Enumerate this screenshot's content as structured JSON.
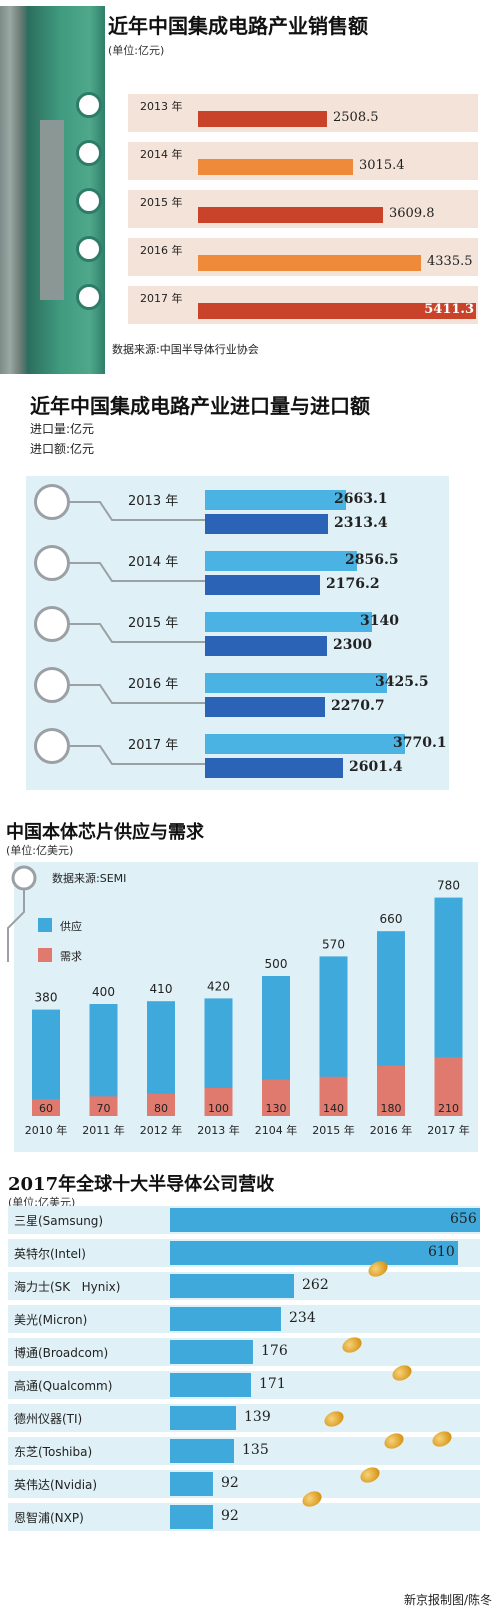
{
  "panel1": {
    "title": "近年中国集成电路产业销售额",
    "unit": "(单位:亿元)",
    "source": "数据来源:中国半导体行业协会",
    "colors": [
      "#c8432a",
      "#ee8a3a",
      "#c8432a",
      "#ee8a3a",
      "#c8432a"
    ]
  },
  "panel2": {
    "title": "近年中国集成电路产业进口量与进口额",
    "unit_volume": "进口量:亿元",
    "unit_amount": "进口额:亿元",
    "colors": {
      "volume": "#4ab3e3",
      "amount": "#2b63b6"
    }
  },
  "panel3": {
    "title": "中国本体芯片供应与需求",
    "unit": "(单位:亿美元)",
    "source": "数据来源:SEMI",
    "legend": [
      "供应",
      "需求"
    ],
    "colors": {
      "supply": "#3fa9dc",
      "demand": "#e07a6e"
    }
  },
  "panel4": {
    "title": "2017年全球十大半导体公司营收",
    "unit": "(单位:亿美元)",
    "credit": "新京报制图/陈冬"
  },
  "chart_data": [
    {
      "type": "bar",
      "title": "近年中国集成电路产业销售额",
      "categories": [
        "2013 年",
        "2014 年",
        "2015 年",
        "2016 年",
        "2017 年"
      ],
      "values": [
        2508.5,
        3015.4,
        3609.8,
        4335.5,
        5411.3
      ]
    },
    {
      "type": "bar",
      "title": "近年中国集成电路产业进口量与进口额",
      "categories": [
        "2013 年",
        "2014 年",
        "2015 年",
        "2016 年",
        "2017 年"
      ],
      "series": [
        {
          "name": "进口量",
          "values": [
            2663.1,
            2856.5,
            3140,
            3425.5,
            3770.1
          ]
        },
        {
          "name": "进口额",
          "values": [
            2313.4,
            2176.2,
            2300,
            2270.7,
            2601.4
          ]
        }
      ]
    },
    {
      "type": "bar",
      "title": "中国本体芯片供应与需求",
      "categories": [
        "2010 年",
        "2011 年",
        "2012 年",
        "2013 年",
        "2104 年",
        "2015 年",
        "2016 年",
        "2017 年"
      ],
      "series": [
        {
          "name": "供应",
          "values": [
            380,
            400,
            410,
            420,
            500,
            570,
            660,
            780
          ]
        },
        {
          "name": "需求",
          "values": [
            60,
            70,
            80,
            100,
            130,
            140,
            180,
            210
          ]
        }
      ],
      "ylim": [
        0,
        800
      ],
      "legend": "top-left"
    },
    {
      "type": "bar",
      "title": "2017年全球十大半导体公司营收",
      "categories": [
        "三星(Samsung)",
        "英特尔(Intel)",
        "海力士(SK   Hynix)",
        "美光(Micron)",
        "博通(Broadcom)",
        "高通(Qualcomm)",
        "德州仪器(TI)",
        "东芝(Toshiba)",
        "英伟达(Nvidia)",
        "恩智浦(NXP)"
      ],
      "values": [
        656,
        610,
        262,
        234,
        176,
        171,
        139,
        135,
        92,
        92
      ]
    }
  ]
}
